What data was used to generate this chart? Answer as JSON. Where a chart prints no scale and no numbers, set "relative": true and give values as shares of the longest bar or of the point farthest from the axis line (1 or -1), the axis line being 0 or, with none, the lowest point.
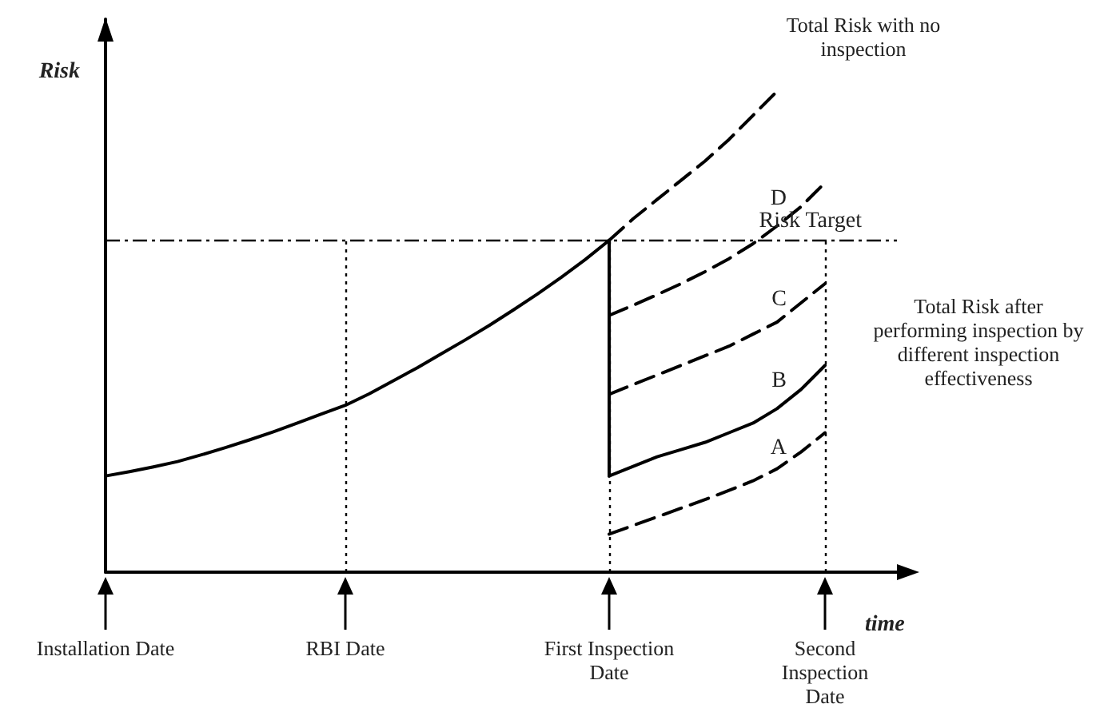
{
  "chart_data": {
    "type": "line",
    "relative": true,
    "xlabel": "time",
    "ylabel": "Risk",
    "categories": [
      "Installation Date",
      null,
      null,
      null,
      null,
      null,
      null,
      null,
      null,
      null,
      "RBI Date",
      null,
      null,
      null,
      null,
      null,
      null,
      null,
      null,
      null,
      null,
      "First Inspection\nDate",
      null,
      null,
      null,
      null,
      null,
      null,
      null,
      null,
      "Second\nInspection\nDate",
      null,
      null,
      null
    ],
    "series": [
      {
        "color": "#000000",
        "line_style": "solid",
        "values": [
          0.2,
          0.209,
          0.219,
          0.23,
          0.244,
          0.259,
          0.275,
          0.292,
          0.31,
          0.329,
          0.347,
          0.371,
          0.398,
          0.425,
          0.454,
          0.483,
          0.513,
          0.545,
          0.578,
          0.613,
          0.65,
          0.69,
          null,
          null,
          null,
          null,
          null,
          null,
          null,
          null,
          null,
          null,
          null,
          null
        ]
      },
      {
        "color": "#000000",
        "line_style": "solid",
        "x": [
          "First Inspection\nDate",
          "First Inspection\nDate"
        ],
        "values": [
          0.69,
          0.2
        ]
      },
      {
        "color": "#000000",
        "line_style": "dashed",
        "values": [
          null,
          null,
          null,
          null,
          null,
          null,
          null,
          null,
          null,
          null,
          null,
          null,
          null,
          null,
          null,
          null,
          null,
          null,
          null,
          null,
          null,
          0.69,
          0.735,
          0.775,
          0.815,
          0.855,
          0.9,
          0.95,
          1.0,
          null,
          null,
          null,
          null,
          null
        ]
      },
      {
        "name": "D",
        "color": "#000000",
        "line_style": "dashed",
        "values": [
          null,
          null,
          null,
          null,
          null,
          null,
          null,
          null,
          null,
          null,
          null,
          null,
          null,
          null,
          null,
          null,
          null,
          null,
          null,
          null,
          null,
          0.534,
          0.555,
          0.577,
          0.6,
          0.625,
          0.652,
          0.683,
          0.72,
          0.76,
          0.81,
          null,
          null,
          null
        ]
      },
      {
        "name": "C",
        "color": "#000000",
        "line_style": "dashed",
        "values": [
          null,
          null,
          null,
          null,
          null,
          null,
          null,
          null,
          null,
          null,
          null,
          null,
          null,
          null,
          null,
          null,
          null,
          null,
          null,
          null,
          null,
          0.37,
          0.39,
          0.41,
          0.43,
          0.45,
          0.47,
          0.495,
          0.52,
          0.56,
          0.6,
          null,
          null,
          null
        ]
      },
      {
        "name": "B",
        "color": "#000000",
        "line_style": "solid",
        "values": [
          null,
          null,
          null,
          null,
          null,
          null,
          null,
          null,
          null,
          null,
          null,
          null,
          null,
          null,
          null,
          null,
          null,
          null,
          null,
          null,
          null,
          0.2,
          0.22,
          0.24,
          0.255,
          0.27,
          0.29,
          0.31,
          0.34,
          0.38,
          0.43,
          null,
          null,
          null
        ]
      },
      {
        "name": "A",
        "color": "#000000",
        "line_style": "dashed",
        "values": [
          null,
          null,
          null,
          null,
          null,
          null,
          null,
          null,
          null,
          null,
          null,
          null,
          null,
          null,
          null,
          null,
          null,
          null,
          null,
          null,
          null,
          0.079,
          0.097,
          0.115,
          0.133,
          0.151,
          0.17,
          0.19,
          0.215,
          0.25,
          0.29,
          null,
          null,
          null
        ]
      }
    ],
    "ref_lines": [
      {
        "axis": "y",
        "value": 0.69,
        "label": "Risk Target",
        "line_style": "dashed",
        "color": "#000000"
      },
      {
        "axis": "x",
        "value": "RBI Date",
        "line_style": "dotted",
        "color": "#000000"
      },
      {
        "axis": "x",
        "value": "First Inspection\nDate",
        "line_style": "dotted",
        "color": "#000000"
      },
      {
        "axis": "x",
        "value": "Second\nInspection\nDate",
        "line_style": "dotted",
        "color": "#000000"
      }
    ],
    "annotations": [
      "Total Risk with no\ninspection",
      "Total Risk after\nperforming inspection by\ndifferent inspection\neffectiveness"
    ],
    "marker": "none",
    "grid": false,
    "legend": false,
    "tick_labels": "x"
  }
}
